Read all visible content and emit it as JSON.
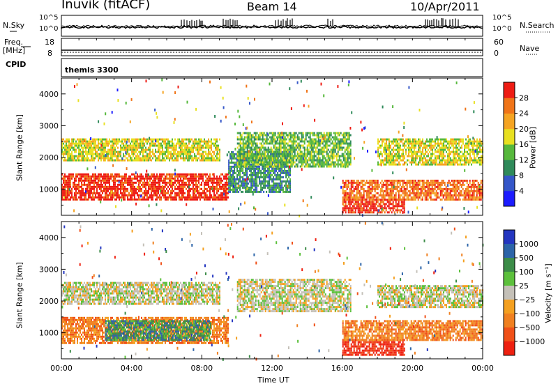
{
  "header": {
    "station": "Inuvik (fitACF)",
    "beam": "Beam 14",
    "date": "10/Apr/2011"
  },
  "noise_panel": {
    "left_label": "N.Sky",
    "right_label": "N.Search",
    "left_ticks": [
      "10^5",
      "10^0"
    ],
    "right_ticks": [
      "10^5",
      "10^0"
    ]
  },
  "freq_panel": {
    "left_label_top": "Freq.",
    "left_label_bottom": "[MHz]",
    "right_label": "Nave",
    "left_ticks": [
      "18",
      "8"
    ],
    "right_ticks": [
      "60",
      "0"
    ]
  },
  "cpid_panel": {
    "label": "CPID",
    "value": "themis 3300"
  },
  "colors": {
    "power": [
      "#1c1cff",
      "#3456c8",
      "#2f8a5a",
      "#56b83c",
      "#e8e020",
      "#f5a422",
      "#f07418",
      "#ee1c14"
    ],
    "velocity": [
      "#2436c0",
      "#2c64a8",
      "#3c8c48",
      "#5cc03c",
      "#c4c0b8",
      "#f4a020",
      "#f08020",
      "#f05018",
      "#ee2010"
    ]
  },
  "chart_data": [
    {
      "type": "heatmap",
      "name": "power",
      "xlabel": "",
      "ylabel": "Slant Range [km]",
      "x_ticks": [
        "00:00",
        "04:00",
        "08:00",
        "12:00",
        "16:00",
        "20:00",
        "00:00"
      ],
      "y_ticks": [
        "1000",
        "2000",
        "3000",
        "4000"
      ],
      "xlim": [
        0,
        24
      ],
      "ylim": [
        180,
        4500
      ],
      "colorbar": {
        "label": "Power [dB]",
        "ticks": [
          "4",
          "8",
          "12",
          "16",
          "20",
          "24",
          "28"
        ]
      },
      "regions": [
        {
          "t0": 0.0,
          "t1": 9.5,
          "r0": 700,
          "r1": 1500,
          "level": 7
        },
        {
          "t0": 0.0,
          "t1": 9.0,
          "r0": 1900,
          "r1": 2600,
          "level": 4
        },
        {
          "t0": 9.5,
          "t1": 13.0,
          "r0": 900,
          "r1": 2200,
          "level": 2
        },
        {
          "t0": 10.0,
          "t1": 16.5,
          "r0": 1700,
          "r1": 2800,
          "level": 3
        },
        {
          "t0": 16.0,
          "t1": 19.5,
          "r0": 300,
          "r1": 700,
          "level": 7
        },
        {
          "t0": 16.0,
          "t1": 24.0,
          "r0": 700,
          "r1": 1300,
          "level": 6
        },
        {
          "t0": 18.0,
          "t1": 24.0,
          "r0": 1800,
          "r1": 2600,
          "level": 4
        }
      ]
    },
    {
      "type": "heatmap",
      "name": "velocity",
      "xlabel": "Time UT",
      "ylabel": "Slant Range [km]",
      "x_ticks": [
        "00:00",
        "04:00",
        "08:00",
        "12:00",
        "16:00",
        "20:00",
        "00:00"
      ],
      "y_ticks": [
        "1000",
        "2000",
        "3000",
        "4000"
      ],
      "xlim": [
        0,
        24
      ],
      "ylim": [
        180,
        4500
      ],
      "colorbar": {
        "label": "Velocity [m s⁻¹]",
        "ticks": [
          "1000",
          "500",
          "100",
          "25",
          "−25",
          "−100",
          "−500",
          "−1000"
        ]
      },
      "regions": [
        {
          "t0": 0.0,
          "t1": 9.5,
          "r0": 700,
          "r1": 1500,
          "level": 6
        },
        {
          "t0": 2.5,
          "t1": 8.5,
          "r0": 800,
          "r1": 1400,
          "level": 2
        },
        {
          "t0": 0.0,
          "t1": 9.0,
          "r0": 1900,
          "r1": 2600,
          "level": 4
        },
        {
          "t0": 10.0,
          "t1": 16.5,
          "r0": 1700,
          "r1": 2700,
          "level": 4
        },
        {
          "t0": 16.0,
          "t1": 19.5,
          "r0": 300,
          "r1": 800,
          "level": 8
        },
        {
          "t0": 16.0,
          "t1": 24.0,
          "r0": 800,
          "r1": 1400,
          "level": 6
        },
        {
          "t0": 18.0,
          "t1": 24.0,
          "r0": 1800,
          "r1": 2500,
          "level": 4
        }
      ]
    }
  ]
}
